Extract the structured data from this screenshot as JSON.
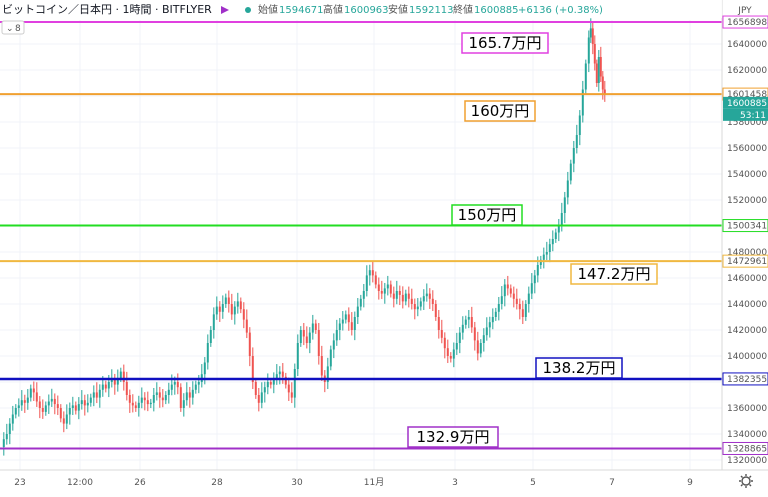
{
  "header": {
    "symbol": "ビットコイン／日本円 · 1時間 · BITFLYER",
    "open_label": "始値",
    "open": "1594671",
    "high_label": "高値",
    "high": "1600963",
    "low_label": "安値",
    "low": "1592113",
    "close_label": "終値",
    "close": "1600885",
    "change": "+6136 (+0.38%)",
    "indicator_count": "8"
  },
  "axis": {
    "currency": "JPY",
    "last_price_label": "1600885",
    "countdown": "53:11",
    "settings_icon": "gear-icon"
  },
  "colors": {
    "up": "#26a69a",
    "down": "#ef5350",
    "magenta": "#e040e0",
    "orange": "#f0a030",
    "green": "#22dd22",
    "gold": "#f0b840",
    "blue": "#1010c0",
    "purple": "#a030c8"
  },
  "chart_data": {
    "type": "candlestick",
    "y_axis": {
      "range": [
        1318000,
        1666000
      ],
      "ticks": [
        1320000,
        1340000,
        1360000,
        1380000,
        1400000,
        1420000,
        1440000,
        1460000,
        1480000,
        1500000,
        1520000,
        1540000,
        1560000,
        1580000,
        1600000,
        1620000,
        1640000
      ]
    },
    "x_axis": {
      "ticks": [
        "23",
        "12:00",
        "26",
        "28",
        "30",
        "11月",
        "3",
        "5",
        "7",
        "9"
      ]
    },
    "price_levels": [
      {
        "value": 1656898,
        "label": "1656898",
        "annotation": "165.7万円",
        "color": "#e040e0"
      },
      {
        "value": 1601458,
        "label": "1601458",
        "annotation": "160万円",
        "color": "#f0a030"
      },
      {
        "value": 1500341,
        "label": "1500341",
        "annotation": "150万円",
        "color": "#22dd22"
      },
      {
        "value": 1472961,
        "label": "1472961",
        "annotation": "147.2万円",
        "color": "#f0b840"
      },
      {
        "value": 1382355,
        "label": "1382355",
        "annotation": "138.2万円",
        "color": "#1010c0"
      },
      {
        "value": 1328865,
        "label": "1328865",
        "annotation": "132.9万円",
        "color": "#a030c8"
      }
    ],
    "series": [
      {
        "points": [
          [
            0,
            1330000
          ],
          [
            3,
            1336000
          ],
          [
            6,
            1340000
          ],
          [
            9,
            1348000
          ],
          [
            12,
            1355000
          ],
          [
            15,
            1360000
          ],
          [
            18,
            1362000
          ],
          [
            21,
            1366000
          ],
          [
            24,
            1364000
          ],
          [
            27,
            1368000
          ],
          [
            30,
            1375000
          ],
          [
            33,
            1372000
          ],
          [
            36,
            1365000
          ],
          [
            39,
            1360000
          ],
          [
            42,
            1357000
          ],
          [
            45,
            1362000
          ],
          [
            48,
            1365000
          ],
          [
            51,
            1367000
          ],
          [
            54,
            1363000
          ],
          [
            57,
            1360000
          ],
          [
            60,
            1352000
          ],
          [
            63,
            1348000
          ],
          [
            66,
            1355000
          ],
          [
            69,
            1360000
          ],
          [
            72,
            1362000
          ],
          [
            75,
            1358000
          ],
          [
            78,
            1363000
          ],
          [
            81,
            1366000
          ],
          [
            84,
            1362000
          ],
          [
            87,
            1364000
          ],
          [
            90,
            1368000
          ],
          [
            93,
            1372000
          ],
          [
            96,
            1368000
          ],
          [
            99,
            1374000
          ],
          [
            102,
            1378000
          ],
          [
            105,
            1375000
          ],
          [
            108,
            1380000
          ],
          [
            111,
            1382000
          ],
          [
            114,
            1378000
          ],
          [
            117,
            1383000
          ],
          [
            120,
            1388000
          ],
          [
            123,
            1380000
          ],
          [
            126,
            1370000
          ],
          [
            129,
            1364000
          ],
          [
            132,
            1362000
          ],
          [
            135,
            1360000
          ],
          [
            138,
            1364000
          ],
          [
            141,
            1368000
          ],
          [
            144,
            1366000
          ],
          [
            147,
            1363000
          ],
          [
            150,
            1364000
          ],
          [
            153,
            1370000
          ],
          [
            156,
            1372000
          ],
          [
            159,
            1368000
          ],
          [
            162,
            1366000
          ],
          [
            165,
            1370000
          ],
          [
            168,
            1374000
          ],
          [
            171,
            1378000
          ],
          [
            174,
            1380000
          ],
          [
            177,
            1376000
          ],
          [
            180,
            1360000
          ],
          [
            183,
            1366000
          ],
          [
            186,
            1372000
          ],
          [
            189,
            1368000
          ],
          [
            192,
            1374000
          ],
          [
            195,
            1378000
          ],
          [
            198,
            1380000
          ],
          [
            201,
            1386000
          ],
          [
            204,
            1395000
          ],
          [
            207,
            1410000
          ],
          [
            210,
            1420000
          ],
          [
            213,
            1432000
          ],
          [
            216,
            1438000
          ],
          [
            219,
            1434000
          ],
          [
            222,
            1440000
          ],
          [
            225,
            1445000
          ],
          [
            228,
            1440000
          ],
          [
            231,
            1432000
          ],
          [
            234,
            1438000
          ],
          [
            237,
            1442000
          ],
          [
            240,
            1436000
          ],
          [
            243,
            1428000
          ],
          [
            246,
            1418000
          ],
          [
            249,
            1400000
          ],
          [
            252,
            1380000
          ],
          [
            255,
            1370000
          ],
          [
            258,
            1364000
          ],
          [
            261,
            1372000
          ],
          [
            264,
            1376000
          ],
          [
            267,
            1380000
          ],
          [
            270,
            1378000
          ],
          [
            273,
            1382000
          ],
          [
            276,
            1386000
          ],
          [
            279,
            1388000
          ],
          [
            282,
            1384000
          ],
          [
            285,
            1378000
          ],
          [
            288,
            1372000
          ],
          [
            291,
            1368000
          ],
          [
            294,
            1390000
          ],
          [
            297,
            1410000
          ],
          [
            300,
            1420000
          ],
          [
            303,
            1415000
          ],
          [
            306,
            1410000
          ],
          [
            309,
            1418000
          ],
          [
            312,
            1425000
          ],
          [
            315,
            1420000
          ],
          [
            318,
            1400000
          ],
          [
            321,
            1385000
          ],
          [
            324,
            1380000
          ],
          [
            327,
            1392000
          ],
          [
            330,
            1405000
          ],
          [
            333,
            1412000
          ],
          [
            336,
            1420000
          ],
          [
            339,
            1425000
          ],
          [
            342,
            1428000
          ],
          [
            345,
            1432000
          ],
          [
            348,
            1426000
          ],
          [
            351,
            1420000
          ],
          [
            354,
            1430000
          ],
          [
            357,
            1438000
          ],
          [
            360,
            1444000
          ],
          [
            363,
            1450000
          ],
          [
            366,
            1462000
          ],
          [
            369,
            1466000
          ],
          [
            372,
            1462000
          ],
          [
            375,
            1455000
          ],
          [
            378,
            1450000
          ],
          [
            381,
            1448000
          ],
          [
            384,
            1452000
          ],
          [
            387,
            1455000
          ],
          [
            390,
            1448000
          ],
          [
            393,
            1444000
          ],
          [
            396,
            1450000
          ],
          [
            399,
            1447000
          ],
          [
            402,
            1442000
          ],
          [
            405,
            1448000
          ],
          [
            408,
            1444000
          ],
          [
            411,
            1440000
          ],
          [
            414,
            1436000
          ],
          [
            417,
            1438000
          ],
          [
            420,
            1442000
          ],
          [
            423,
            1446000
          ],
          [
            426,
            1448000
          ],
          [
            429,
            1444000
          ],
          [
            432,
            1440000
          ],
          [
            435,
            1430000
          ],
          [
            438,
            1420000
          ],
          [
            441,
            1414000
          ],
          [
            444,
            1406000
          ],
          [
            447,
            1400000
          ],
          [
            450,
            1398000
          ],
          [
            453,
            1405000
          ],
          [
            456,
            1410000
          ],
          [
            459,
            1418000
          ],
          [
            462,
            1424000
          ],
          [
            465,
            1428000
          ],
          [
            468,
            1430000
          ],
          [
            471,
            1422000
          ],
          [
            474,
            1412000
          ],
          [
            477,
            1402000
          ],
          [
            480,
            1410000
          ],
          [
            483,
            1416000
          ],
          [
            486,
            1422000
          ],
          [
            489,
            1426000
          ],
          [
            492,
            1430000
          ],
          [
            495,
            1434000
          ],
          [
            498,
            1440000
          ],
          [
            501,
            1446000
          ],
          [
            504,
            1455000
          ],
          [
            507,
            1452000
          ],
          [
            510,
            1448000
          ],
          [
            513,
            1444000
          ],
          [
            516,
            1440000
          ],
          [
            519,
            1436000
          ],
          [
            522,
            1430000
          ],
          [
            525,
            1440000
          ],
          [
            528,
            1448000
          ],
          [
            531,
            1456000
          ],
          [
            534,
            1462000
          ],
          [
            537,
            1470000
          ],
          [
            540,
            1474000
          ],
          [
            543,
            1478000
          ],
          [
            546,
            1480000
          ],
          [
            549,
            1486000
          ],
          [
            552,
            1490000
          ],
          [
            555,
            1495000
          ],
          [
            558,
            1500000
          ],
          [
            561,
            1510000
          ],
          [
            564,
            1522000
          ],
          [
            567,
            1535000
          ],
          [
            570,
            1548000
          ],
          [
            573,
            1560000
          ],
          [
            576,
            1570000
          ],
          [
            579,
            1585000
          ],
          [
            582,
            1605000
          ],
          [
            585,
            1625000
          ],
          [
            588,
            1645000
          ],
          [
            590,
            1652000
          ],
          [
            592,
            1640000
          ],
          [
            594,
            1625000
          ],
          [
            596,
            1610000
          ],
          [
            598,
            1630000
          ],
          [
            600,
            1615000
          ],
          [
            602,
            1605000
          ],
          [
            604,
            1600885
          ]
        ]
      }
    ]
  }
}
